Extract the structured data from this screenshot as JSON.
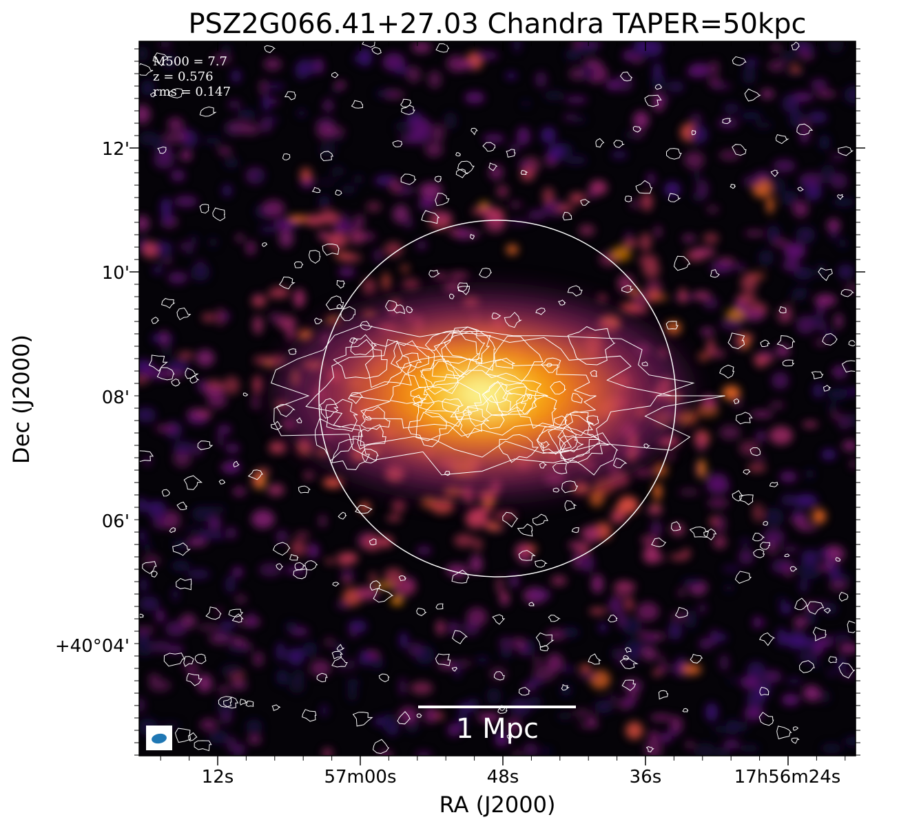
{
  "figure": {
    "title": "PSZ2G066.41+27.03 Chandra TAPER=50kpc",
    "xlabel": "RA (J2000)",
    "ylabel": "Dec (J2000)",
    "x_ticks": [
      "12s",
      "57m00s",
      "48s",
      "36s",
      "17h56m24s"
    ],
    "y_ticks": [
      "12'",
      "10'",
      "08'",
      "06'",
      "+40°04'"
    ],
    "annotations": [
      "M500 = 7.7",
      "z = 0.576",
      "rms = 0.147"
    ],
    "scale_bar_label": "1 Mpc",
    "beam_color": "#1f77b4",
    "colormap": "inferno",
    "contour_color": "#ffffff",
    "circle_color": "#ffffff"
  }
}
